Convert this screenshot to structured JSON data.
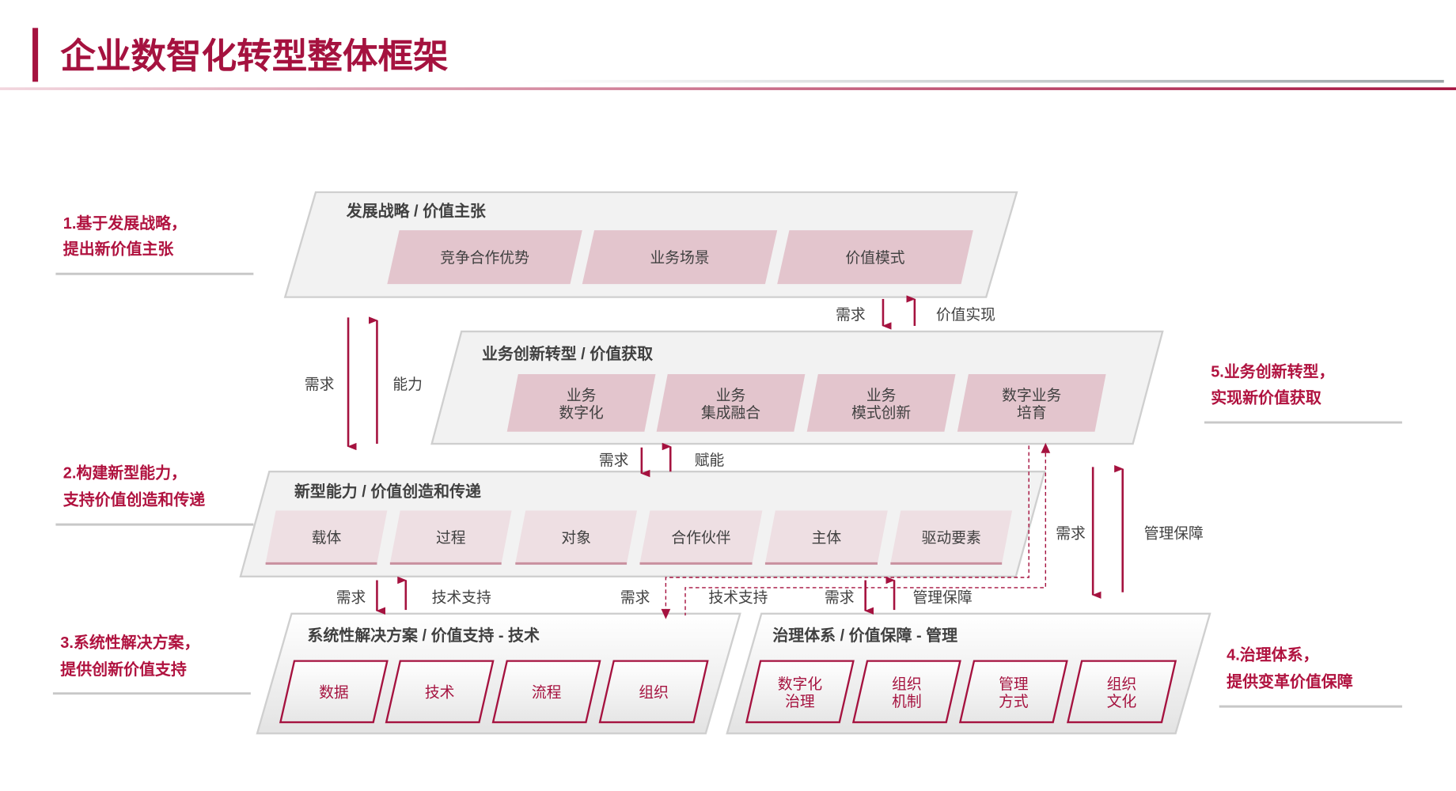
{
  "title": "企业数智化转型整体框架",
  "colors": {
    "accent": "#a5123f",
    "box_fill": "#f2f2f2",
    "item_pink": "#e3c5cd",
    "item_light": "#eedfe3"
  },
  "side_labels": [
    {
      "line1": "1.基于发展战略，",
      "line2": "提出新价值主张"
    },
    {
      "line1": "2.构建新型能力，",
      "line2": "支持价值创造和传递"
    },
    {
      "line1": "3.系统性解决方案，",
      "line2": "提供创新价值支持"
    },
    {
      "line1": "4.治理体系，",
      "line2": "提供变革价值保障"
    },
    {
      "line1": "5.业务创新转型，",
      "line2": "实现新价值获取"
    }
  ],
  "layers": [
    {
      "title": "发展战略 / 价值主张",
      "items": [
        [
          "竞争合作优势"
        ],
        [
          "业务场景"
        ],
        [
          "价值模式"
        ]
      ]
    },
    {
      "title": "业务创新转型 / 价值获取",
      "items": [
        [
          "业务",
          "数字化"
        ],
        [
          "业务",
          "集成融合"
        ],
        [
          "业务",
          "模式创新"
        ],
        [
          "数字业务",
          "培育"
        ]
      ]
    },
    {
      "title": "新型能力 / 价值创造和传递",
      "items": [
        [
          "载体"
        ],
        [
          "过程"
        ],
        [
          "对象"
        ],
        [
          "合作伙伴"
        ],
        [
          "主体"
        ],
        [
          "驱动要素"
        ]
      ]
    },
    {
      "title": "系统性解决方案 / 价值支持 - 技术",
      "items": [
        [
          "数据"
        ],
        [
          "技术"
        ],
        [
          "流程"
        ],
        [
          "组织"
        ]
      ]
    },
    {
      "title": "治理体系 / 价值保障 - 管理",
      "items": [
        [
          "数字化",
          "治理"
        ],
        [
          "组织",
          "机制"
        ],
        [
          "管理",
          "方式"
        ],
        [
          "组织",
          "文化"
        ]
      ]
    }
  ],
  "arrow_labels": {
    "l1_demand": "需求",
    "l1_value": "价值实现",
    "left_demand": "需求",
    "left_capability": "能力",
    "l2_demand": "需求",
    "l2_empower": "赋能",
    "right_demand": "需求",
    "right_mgmt": "管理保障",
    "l3_demand_a": "需求",
    "l3_tech_a": "技术支持",
    "l3_demand_b": "需求",
    "l3_tech_b": "技术支持",
    "l3_demand_c": "需求",
    "l3_mgmt_c": "管理保障"
  }
}
